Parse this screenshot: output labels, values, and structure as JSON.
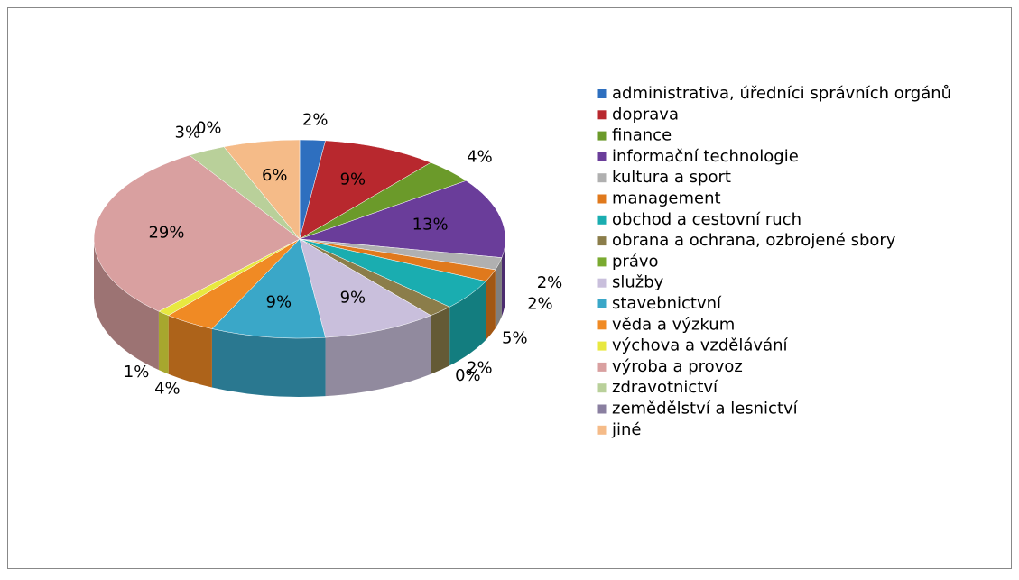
{
  "chart_data": {
    "type": "pie3d",
    "categories": [
      "administrativa, úředníci správních orgánů",
      "doprava",
      "finance",
      "informační technologie",
      "kultura a sport",
      "management",
      "obchod a cestovní ruch",
      "obrana a ochrana, ozbrojené sbory",
      "právo",
      "služby",
      "stavebnictvní",
      "věda a výzkum",
      "výchova a vzdělávání",
      "výroba a provoz",
      "zdravotnictví",
      "zemědělství a lesnictví",
      "jiné"
    ],
    "values": [
      2,
      9,
      4,
      13,
      2,
      2,
      5,
      2,
      0,
      9,
      9,
      4,
      1,
      29,
      3,
      0,
      6
    ],
    "value_labels": [
      "2%",
      "9%",
      "4%",
      "13%",
      "2%",
      "2%",
      "5%",
      "2%",
      "0%",
      "9%",
      "9%",
      "4%",
      "1%",
      "29%",
      "3%",
      "0%",
      "6%"
    ],
    "colors": [
      "#2e6fbf",
      "#b8282e",
      "#6b9a2a",
      "#6a3d9a",
      "#b0b0b0",
      "#e0791c",
      "#1aadb0",
      "#8b7d4a",
      "#7aaa30",
      "#c9bfdc",
      "#3aa7c8",
      "#f08a24",
      "#e8e840",
      "#d9a0a0",
      "#b9d09a",
      "#8a7fa0",
      "#f5bb88"
    ],
    "legend": "right"
  }
}
